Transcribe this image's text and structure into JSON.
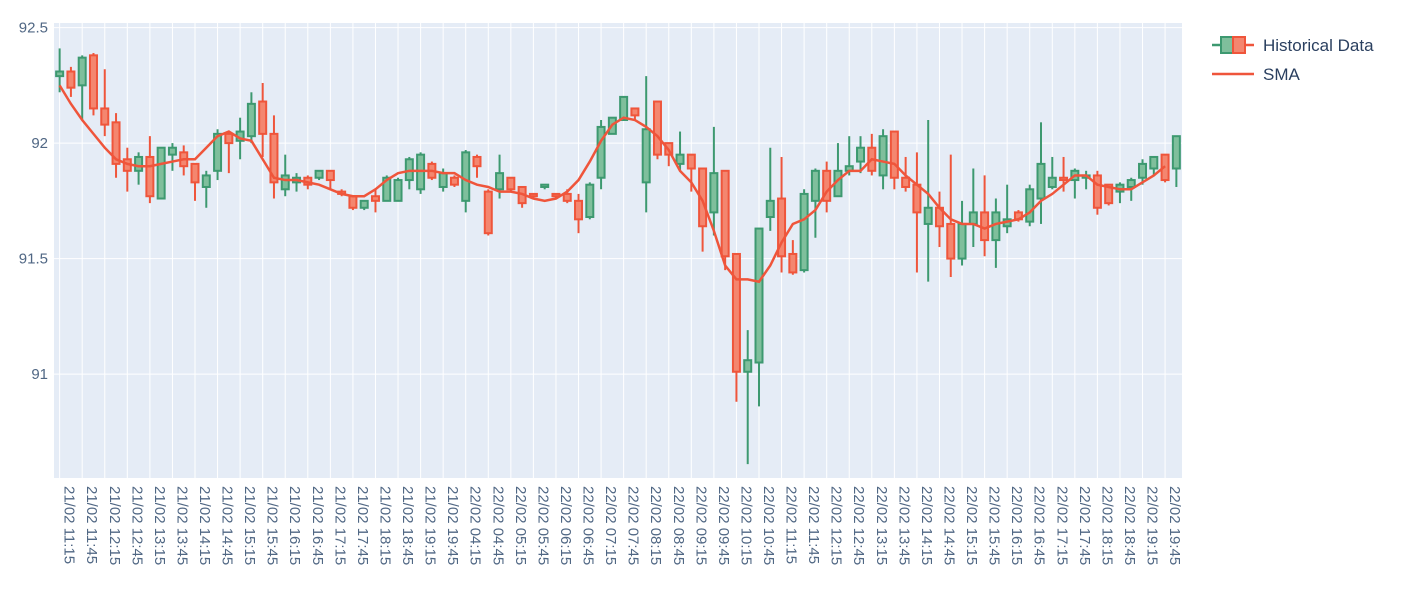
{
  "chart_data": {
    "type": "candlestick",
    "legend": {
      "placement": "top-right",
      "items": [
        {
          "name": "Historical Data",
          "kind": "candlestick"
        },
        {
          "name": "SMA",
          "kind": "line"
        }
      ]
    },
    "colors": {
      "plot_background": "#e5ecf6",
      "gridline": "#ffffff",
      "increasing": "#3d9970",
      "increasing_fill": "#7fbf9c",
      "decreasing": "#ef553b",
      "decreasing_fill": "#f4866f",
      "sma": "#ef553b",
      "tick_text": "#506784"
    },
    "ylim": [
      90.55,
      92.52
    ],
    "yticks": [
      91,
      91.5,
      92,
      92.5
    ],
    "ytick_labels": [
      "91",
      "91.5",
      "92",
      "92.5"
    ],
    "xtick_labels": [
      "21/02 11:15",
      "21/02 11:45",
      "21/02 12:15",
      "21/02 12:45",
      "21/02 13:15",
      "21/02 13:45",
      "21/02 14:15",
      "21/02 14:45",
      "21/02 15:15",
      "21/02 15:45",
      "21/02 16:15",
      "21/02 16:45",
      "21/02 17:15",
      "21/02 17:45",
      "21/02 18:15",
      "21/02 18:45",
      "21/02 19:15",
      "21/02 19:45",
      "22/02 04:15",
      "22/02 04:45",
      "22/02 05:15",
      "22/02 05:45",
      "22/02 06:15",
      "22/02 06:45",
      "22/02 07:15",
      "22/02 07:45",
      "22/02 08:15",
      "22/02 08:45",
      "22/02 09:15",
      "22/02 09:45",
      "22/02 10:15",
      "22/02 10:45",
      "22/02 11:15",
      "22/02 11:45",
      "22/02 12:15",
      "22/02 12:45",
      "22/02 13:15",
      "22/02 13:45",
      "22/02 14:15",
      "22/02 14:45",
      "22/02 15:15",
      "22/02 15:45",
      "22/02 16:15",
      "22/02 16:45",
      "22/02 17:15",
      "22/02 17:45",
      "22/02 18:15",
      "22/02 18:45",
      "22/02 19:15",
      "22/02 19:45"
    ],
    "candles": [
      {
        "o": 92.29,
        "h": 92.41,
        "l": 92.22,
        "c": 92.31
      },
      {
        "o": 92.31,
        "h": 92.33,
        "l": 92.2,
        "c": 92.24
      },
      {
        "o": 92.25,
        "h": 92.38,
        "l": 92.1,
        "c": 92.37
      },
      {
        "o": 92.38,
        "h": 92.39,
        "l": 92.12,
        "c": 92.15
      },
      {
        "o": 92.15,
        "h": 92.32,
        "l": 92.03,
        "c": 92.08
      },
      {
        "o": 92.09,
        "h": 92.13,
        "l": 91.85,
        "c": 91.91
      },
      {
        "o": 91.93,
        "h": 91.98,
        "l": 91.79,
        "c": 91.88
      },
      {
        "o": 91.88,
        "h": 91.96,
        "l": 91.82,
        "c": 91.94
      },
      {
        "o": 91.94,
        "h": 92.03,
        "l": 91.74,
        "c": 91.77
      },
      {
        "o": 91.76,
        "h": 91.98,
        "l": 91.76,
        "c": 91.98
      },
      {
        "o": 91.95,
        "h": 92.0,
        "l": 91.88,
        "c": 91.98
      },
      {
        "o": 91.96,
        "h": 91.99,
        "l": 91.86,
        "c": 91.9
      },
      {
        "o": 91.91,
        "h": 91.91,
        "l": 91.75,
        "c": 91.83
      },
      {
        "o": 91.81,
        "h": 91.88,
        "l": 91.72,
        "c": 91.86
      },
      {
        "o": 91.88,
        "h": 92.06,
        "l": 91.84,
        "c": 92.04
      },
      {
        "o": 92.04,
        "h": 92.05,
        "l": 91.87,
        "c": 92.0
      },
      {
        "o": 92.01,
        "h": 92.11,
        "l": 91.93,
        "c": 92.05
      },
      {
        "o": 92.03,
        "h": 92.22,
        "l": 92.0,
        "c": 92.17
      },
      {
        "o": 92.18,
        "h": 92.26,
        "l": 91.94,
        "c": 92.04
      },
      {
        "o": 92.04,
        "h": 92.12,
        "l": 91.76,
        "c": 91.83
      },
      {
        "o": 91.8,
        "h": 91.95,
        "l": 91.77,
        "c": 91.86
      },
      {
        "o": 91.83,
        "h": 91.87,
        "l": 91.79,
        "c": 91.85
      },
      {
        "o": 91.85,
        "h": 91.86,
        "l": 91.8,
        "c": 91.82
      },
      {
        "o": 91.85,
        "h": 91.88,
        "l": 91.84,
        "c": 91.88
      },
      {
        "o": 91.88,
        "h": 91.88,
        "l": 91.8,
        "c": 91.84
      },
      {
        "o": 91.79,
        "h": 91.8,
        "l": 91.77,
        "c": 91.78
      },
      {
        "o": 91.77,
        "h": 91.77,
        "l": 91.71,
        "c": 91.72
      },
      {
        "o": 91.72,
        "h": 91.75,
        "l": 91.71,
        "c": 91.75
      },
      {
        "o": 91.77,
        "h": 91.8,
        "l": 91.7,
        "c": 91.75
      },
      {
        "o": 91.75,
        "h": 91.86,
        "l": 91.75,
        "c": 91.85
      },
      {
        "o": 91.75,
        "h": 91.85,
        "l": 91.75,
        "c": 91.84
      },
      {
        "o": 91.84,
        "h": 91.94,
        "l": 91.8,
        "c": 91.93
      },
      {
        "o": 91.8,
        "h": 91.96,
        "l": 91.78,
        "c": 91.95
      },
      {
        "o": 91.91,
        "h": 91.92,
        "l": 91.84,
        "c": 91.85
      },
      {
        "o": 91.81,
        "h": 91.89,
        "l": 91.79,
        "c": 91.87
      },
      {
        "o": 91.85,
        "h": 91.86,
        "l": 91.81,
        "c": 91.82
      },
      {
        "o": 91.75,
        "h": 91.97,
        "l": 91.7,
        "c": 91.96
      },
      {
        "o": 91.94,
        "h": 91.95,
        "l": 91.85,
        "c": 91.9
      },
      {
        "o": 91.79,
        "h": 91.8,
        "l": 91.6,
        "c": 91.61
      },
      {
        "o": 91.8,
        "h": 91.95,
        "l": 91.76,
        "c": 91.87
      },
      {
        "o": 91.85,
        "h": 91.85,
        "l": 91.79,
        "c": 91.8
      },
      {
        "o": 91.81,
        "h": 91.81,
        "l": 91.72,
        "c": 91.74
      },
      {
        "o": 91.78,
        "h": 91.78,
        "l": 91.76,
        "c": 91.77
      },
      {
        "o": 91.81,
        "h": 91.82,
        "l": 91.8,
        "c": 91.82
      },
      {
        "o": 91.78,
        "h": 91.78,
        "l": 91.76,
        "c": 91.77
      },
      {
        "o": 91.78,
        "h": 91.8,
        "l": 91.74,
        "c": 91.75
      },
      {
        "o": 91.75,
        "h": 91.78,
        "l": 91.61,
        "c": 91.67
      },
      {
        "o": 91.68,
        "h": 91.83,
        "l": 91.67,
        "c": 91.82
      },
      {
        "o": 91.85,
        "h": 92.1,
        "l": 91.8,
        "c": 92.07
      },
      {
        "o": 92.04,
        "h": 92.11,
        "l": 92.04,
        "c": 92.11
      },
      {
        "o": 92.1,
        "h": 92.2,
        "l": 92.1,
        "c": 92.2
      },
      {
        "o": 92.15,
        "h": 92.15,
        "l": 92.1,
        "c": 92.12
      },
      {
        "o": 91.83,
        "h": 92.29,
        "l": 91.7,
        "c": 92.06
      },
      {
        "o": 92.18,
        "h": 92.18,
        "l": 91.93,
        "c": 91.95
      },
      {
        "o": 92.0,
        "h": 92.0,
        "l": 91.9,
        "c": 91.95
      },
      {
        "o": 91.91,
        "h": 92.05,
        "l": 91.88,
        "c": 91.95
      },
      {
        "o": 91.95,
        "h": 91.95,
        "l": 91.79,
        "c": 91.89
      },
      {
        "o": 91.89,
        "h": 91.89,
        "l": 91.53,
        "c": 91.64
      },
      {
        "o": 91.7,
        "h": 92.07,
        "l": 91.6,
        "c": 91.87
      },
      {
        "o": 91.88,
        "h": 91.88,
        "l": 91.45,
        "c": 91.51
      },
      {
        "o": 91.52,
        "h": 91.52,
        "l": 90.88,
        "c": 91.01
      },
      {
        "o": 91.01,
        "h": 91.19,
        "l": 90.61,
        "c": 91.06
      },
      {
        "o": 91.05,
        "h": 91.63,
        "l": 90.86,
        "c": 91.63
      },
      {
        "o": 91.68,
        "h": 91.98,
        "l": 91.62,
        "c": 91.75
      },
      {
        "o": 91.76,
        "h": 91.94,
        "l": 91.44,
        "c": 91.51
      },
      {
        "o": 91.52,
        "h": 91.58,
        "l": 91.43,
        "c": 91.44
      },
      {
        "o": 91.45,
        "h": 91.8,
        "l": 91.44,
        "c": 91.78
      },
      {
        "o": 91.75,
        "h": 91.89,
        "l": 91.59,
        "c": 91.88
      },
      {
        "o": 91.88,
        "h": 91.92,
        "l": 91.7,
        "c": 91.75
      },
      {
        "o": 91.77,
        "h": 92.0,
        "l": 91.77,
        "c": 91.88
      },
      {
        "o": 91.88,
        "h": 92.03,
        "l": 91.86,
        "c": 91.9
      },
      {
        "o": 91.92,
        "h": 92.03,
        "l": 91.87,
        "c": 91.98
      },
      {
        "o": 91.98,
        "h": 92.04,
        "l": 91.86,
        "c": 91.88
      },
      {
        "o": 91.86,
        "h": 92.06,
        "l": 91.8,
        "c": 92.03
      },
      {
        "o": 92.05,
        "h": 92.05,
        "l": 91.8,
        "c": 91.85
      },
      {
        "o": 91.85,
        "h": 91.94,
        "l": 91.79,
        "c": 91.81
      },
      {
        "o": 91.82,
        "h": 91.96,
        "l": 91.44,
        "c": 91.7
      },
      {
        "o": 91.65,
        "h": 92.1,
        "l": 91.4,
        "c": 91.72
      },
      {
        "o": 91.72,
        "h": 91.79,
        "l": 91.55,
        "c": 91.64
      },
      {
        "o": 91.65,
        "h": 91.95,
        "l": 91.42,
        "c": 91.5
      },
      {
        "o": 91.5,
        "h": 91.75,
        "l": 91.47,
        "c": 91.65
      },
      {
        "o": 91.65,
        "h": 91.89,
        "l": 91.55,
        "c": 91.7
      },
      {
        "o": 91.7,
        "h": 91.86,
        "l": 91.51,
        "c": 91.58
      },
      {
        "o": 91.58,
        "h": 91.76,
        "l": 91.46,
        "c": 91.7
      },
      {
        "o": 91.64,
        "h": 91.82,
        "l": 91.61,
        "c": 91.67
      },
      {
        "o": 91.7,
        "h": 91.71,
        "l": 91.66,
        "c": 91.67
      },
      {
        "o": 91.66,
        "h": 91.82,
        "l": 91.64,
        "c": 91.8
      },
      {
        "o": 91.76,
        "h": 92.09,
        "l": 91.65,
        "c": 91.91
      },
      {
        "o": 91.81,
        "h": 91.94,
        "l": 91.8,
        "c": 91.85
      },
      {
        "o": 91.85,
        "h": 91.94,
        "l": 91.79,
        "c": 91.84
      },
      {
        "o": 91.84,
        "h": 91.89,
        "l": 91.76,
        "c": 91.88
      },
      {
        "o": 91.85,
        "h": 91.88,
        "l": 91.8,
        "c": 91.86
      },
      {
        "o": 91.86,
        "h": 91.88,
        "l": 91.69,
        "c": 91.72
      },
      {
        "o": 91.82,
        "h": 91.82,
        "l": 91.73,
        "c": 91.74
      },
      {
        "o": 91.79,
        "h": 91.83,
        "l": 91.74,
        "c": 91.82
      },
      {
        "o": 91.81,
        "h": 91.85,
        "l": 91.75,
        "c": 91.84
      },
      {
        "o": 91.85,
        "h": 91.93,
        "l": 91.82,
        "c": 91.91
      },
      {
        "o": 91.89,
        "h": 91.94,
        "l": 91.86,
        "c": 91.94
      },
      {
        "o": 91.95,
        "h": 91.95,
        "l": 91.83,
        "c": 91.84
      },
      {
        "o": 91.89,
        "h": 92.03,
        "l": 91.81,
        "c": 92.03
      }
    ],
    "sma": [
      92.25,
      92.17,
      92.1,
      92.04,
      91.98,
      91.93,
      91.91,
      91.9,
      91.9,
      91.91,
      91.92,
      91.93,
      91.93,
      91.98,
      92.03,
      92.05,
      92.02,
      92.01,
      91.93,
      91.85,
      91.84,
      91.84,
      91.83,
      91.82,
      91.8,
      91.78,
      91.77,
      91.77,
      91.8,
      91.84,
      91.87,
      91.88,
      91.88,
      91.88,
      91.87,
      91.87,
      91.84,
      91.82,
      91.81,
      91.79,
      91.79,
      91.78,
      91.76,
      91.75,
      91.76,
      91.79,
      91.84,
      91.92,
      92.01,
      92.08,
      92.11,
      92.1,
      92.07,
      92.03,
      91.97,
      91.88,
      91.83,
      91.75,
      91.62,
      91.47,
      91.41,
      91.41,
      91.4,
      91.47,
      91.57,
      91.65,
      91.67,
      91.71,
      91.79,
      91.84,
      91.88,
      91.88,
      91.93,
      91.92,
      91.91,
      91.86,
      91.82,
      91.78,
      91.72,
      91.67,
      91.65,
      91.65,
      91.63,
      91.65,
      91.66,
      91.67,
      91.7,
      91.75,
      91.78,
      91.82,
      91.86,
      91.86,
      91.82,
      91.81,
      91.8,
      91.8,
      91.83,
      91.86,
      91.9
    ],
    "sma_start_index": 0
  }
}
